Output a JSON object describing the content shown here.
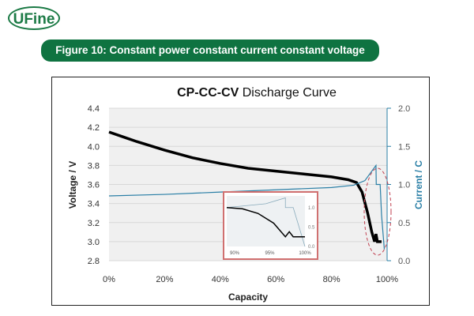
{
  "logo": "UFine",
  "banner": "Figure 10: Constant power constant current constant voltage discharge",
  "chart_data": {
    "type": "line",
    "title_bold": "CP-CC-CV",
    "title_rest": "Discharge Curve",
    "xlabel": "Capacity",
    "ylabel": "Voltage / V",
    "y2label": "Current / C",
    "xlim": [
      0,
      100
    ],
    "ylim": [
      2.8,
      4.4
    ],
    "y2lim": [
      0,
      2
    ],
    "xticks": [
      "0%",
      "20%",
      "40%",
      "60%",
      "80%",
      "100%"
    ],
    "yticks": [
      "2.8",
      "3.0",
      "3.2",
      "3.4",
      "3.6",
      "3.8",
      "4.0",
      "4.2",
      "4.4"
    ],
    "y2ticks": [
      "0.0",
      "0.5",
      "1.0",
      "1.5",
      "2.0"
    ],
    "series": [
      {
        "name": "Voltage",
        "axis": "left",
        "color": "#000000",
        "x": [
          0,
          5,
          10,
          20,
          30,
          40,
          50,
          60,
          70,
          80,
          86,
          89,
          91,
          93,
          94.5,
          95.5,
          96,
          96.5,
          97,
          98
        ],
        "y": [
          4.15,
          4.1,
          4.05,
          3.96,
          3.88,
          3.82,
          3.77,
          3.74,
          3.71,
          3.68,
          3.65,
          3.62,
          3.52,
          3.3,
          3.1,
          3.0,
          3.08,
          3.0,
          3.0,
          3.0
        ]
      },
      {
        "name": "Current",
        "axis": "right",
        "color": "#2a7fa6",
        "x": [
          0,
          20,
          40,
          60,
          80,
          88,
          92,
          96,
          96.1,
          97.5,
          98,
          99
        ],
        "y": [
          0.85,
          0.87,
          0.9,
          0.93,
          0.96,
          0.99,
          1.05,
          1.25,
          1.0,
          1.0,
          0.6,
          0.15
        ]
      }
    ],
    "inset": {
      "xticks": [
        "90%",
        "95%",
        "100%"
      ],
      "y2ticks": [
        "0.0",
        "0.5",
        "1.0"
      ],
      "voltage": {
        "x": [
          90,
          92,
          94,
          96,
          97.5,
          98,
          98.5,
          99,
          100
        ],
        "y": [
          1.0,
          0.97,
          0.85,
          0.6,
          0.25,
          0.38,
          0.25,
          0.25,
          0.25
        ]
      },
      "current": {
        "x": [
          90,
          95,
          97.5,
          97.5,
          98.5,
          100
        ],
        "y": [
          1.0,
          1.1,
          1.25,
          1.0,
          1.0,
          0.0
        ]
      }
    },
    "annotation": "highlight ellipse around 90%-100% region"
  }
}
